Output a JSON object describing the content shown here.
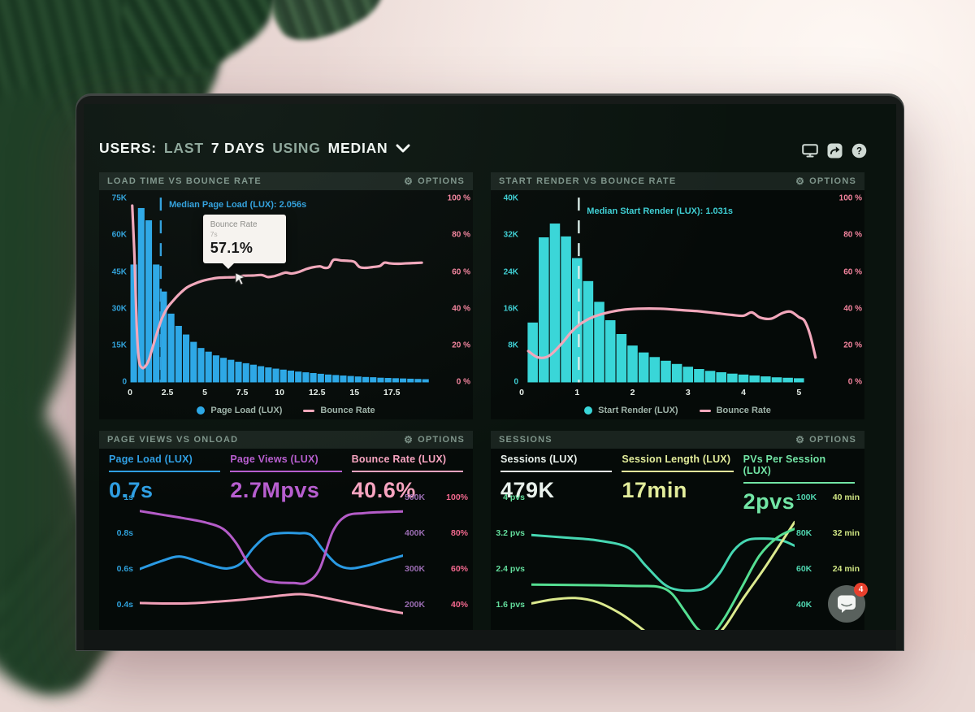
{
  "header": {
    "seg1": "USERS:",
    "seg2": "LAST",
    "seg3": "7 DAYS",
    "seg4": "USING",
    "seg5": "MEDIAN"
  },
  "options_label": "OPTIONS",
  "top_icons": [
    "display-icon",
    "share-icon",
    "help-icon"
  ],
  "panels": {
    "p1": {
      "title": "LOAD TIME VS BOUNCE RATE"
    },
    "p2": {
      "title": "START RENDER VS BOUNCE RATE"
    },
    "p3": {
      "title": "PAGE VIEWS VS ONLOAD",
      "metrics": [
        {
          "label": "Page Load (LUX)",
          "value": "0.7s",
          "color": "#2f9fe3"
        },
        {
          "label": "Page Views (LUX)",
          "value": "2.7Mpvs",
          "color": "#b75ecf"
        },
        {
          "label": "Bounce Rate (LUX)",
          "value": "40.6%",
          "color": "#f7a4c0"
        }
      ]
    },
    "p4": {
      "title": "SESSIONS",
      "metrics": [
        {
          "label": "Sessions (LUX)",
          "value": "479K",
          "color": "#e9f1ec"
        },
        {
          "label": "Session Length (LUX)",
          "value": "17min",
          "color": "#e3ed9b"
        },
        {
          "label": "PVs Per Session (LUX)",
          "value": "2pvs",
          "color": "#72e5a5"
        }
      ]
    }
  },
  "chat": {
    "badge": "4"
  },
  "chart_data": [
    {
      "type": "bar+line",
      "title": "LOAD TIME VS BOUNCE RATE",
      "x_max": 20.2,
      "bar_start": 0,
      "bar_bin": 0.5,
      "bar_color": "#2ba7e6",
      "y_left_max": 75,
      "y_right_max": 100,
      "y_left_ticks": [
        [
          "75K",
          75
        ],
        [
          "60K",
          60
        ],
        [
          "45K",
          45
        ],
        [
          "30K",
          30
        ],
        [
          "15K",
          15
        ],
        [
          "0",
          0
        ]
      ],
      "y_right_ticks": [
        [
          "100 %",
          100
        ],
        [
          "80 %",
          80
        ],
        [
          "60 %",
          60
        ],
        [
          "40 %",
          40
        ],
        [
          "20 %",
          20
        ],
        [
          "0 %",
          0
        ]
      ],
      "y_left_color": "#2e9fd8",
      "y_right_color": "#f4849e",
      "x_ticks": [
        [
          "0",
          0
        ],
        [
          "2.5",
          2.5
        ],
        [
          "5",
          5
        ],
        [
          "7.5",
          7.5
        ],
        [
          "10",
          10
        ],
        [
          "12.5",
          12.5
        ],
        [
          "15",
          15
        ],
        [
          "17.5",
          17.5
        ]
      ],
      "bars": [
        48,
        71,
        66,
        48,
        37,
        28,
        23,
        19.5,
        16.5,
        14,
        12.5,
        11,
        10,
        9.2,
        8.4,
        7.8,
        7.2,
        6.6,
        6.1,
        5.6,
        5.2,
        4.8,
        4.4,
        4.1,
        3.8,
        3.5,
        3.2,
        3.0,
        2.8,
        2.6,
        2.4,
        2.2,
        2.1,
        1.9,
        1.8,
        1.7,
        1.6,
        1.5,
        1.4,
        1.3
      ],
      "line_color": "#f2a7bb",
      "line": [
        [
          0.15,
          96
        ],
        [
          0.3,
          68
        ],
        [
          0.45,
          30
        ],
        [
          0.6,
          12
        ],
        [
          0.8,
          8
        ],
        [
          1.0,
          8.5
        ],
        [
          1.25,
          12
        ],
        [
          1.55,
          20
        ],
        [
          1.85,
          28
        ],
        [
          2.15,
          35
        ],
        [
          2.5,
          40.5
        ],
        [
          2.9,
          44.5
        ],
        [
          3.3,
          48
        ],
        [
          3.8,
          51.5
        ],
        [
          4.3,
          53.5
        ],
        [
          4.8,
          55
        ],
        [
          5.3,
          56
        ],
        [
          5.9,
          56.8
        ],
        [
          6.5,
          57
        ],
        [
          7.0,
          57.1
        ],
        [
          7.6,
          57.9
        ],
        [
          8.2,
          58
        ],
        [
          8.8,
          58.3
        ],
        [
          9.2,
          57.2
        ],
        [
          9.6,
          57.6
        ],
        [
          10.0,
          58.6
        ],
        [
          10.4,
          59.6
        ],
        [
          10.8,
          59.1
        ],
        [
          11.3,
          60
        ],
        [
          11.8,
          61.6
        ],
        [
          12.3,
          62.6
        ],
        [
          12.7,
          63
        ],
        [
          13.0,
          62.2
        ],
        [
          13.3,
          62.6
        ],
        [
          13.6,
          66.5
        ],
        [
          14.1,
          66.2
        ],
        [
          14.6,
          66
        ],
        [
          15.0,
          65.4
        ],
        [
          15.35,
          62.6
        ],
        [
          15.8,
          62.2
        ],
        [
          16.2,
          62.6
        ],
        [
          16.7,
          63.2
        ],
        [
          17.0,
          65
        ],
        [
          17.4,
          64.6
        ],
        [
          17.9,
          64.4
        ],
        [
          18.4,
          64.6
        ],
        [
          19.0,
          64.8
        ],
        [
          19.5,
          65
        ]
      ],
      "median_x": 2.056,
      "median_color": "#2f9fdd",
      "median_label": "Median Page Load (LUX): 2.056s",
      "median_label_color": "#2f9fdd",
      "tooltip": {
        "title": "Bounce Rate",
        "sub": "7s",
        "value": "57.1%"
      },
      "legend": [
        {
          "marker": "dot",
          "color": "#2ba7e6",
          "label": "Page Load (LUX)"
        },
        {
          "marker": "dash",
          "color": "#f2a7bb",
          "label": "Bounce Rate"
        }
      ]
    },
    {
      "type": "bar+line",
      "title": "START RENDER VS BOUNCE RATE",
      "x_max": 5.45,
      "bar_start": 0.1,
      "bar_bin": 0.2,
      "bar_color": "#39d6d8",
      "y_left_max": 40,
      "y_right_max": 100,
      "y_left_ticks": [
        [
          "40K",
          40
        ],
        [
          "32K",
          32
        ],
        [
          "24K",
          24
        ],
        [
          "16K",
          16
        ],
        [
          "8K",
          8
        ],
        [
          "0",
          0
        ]
      ],
      "y_right_ticks": [
        [
          "100 %",
          100
        ],
        [
          "80 %",
          80
        ],
        [
          "60 %",
          60
        ],
        [
          "40 %",
          40
        ],
        [
          "20 %",
          20
        ],
        [
          "0 %",
          0
        ]
      ],
      "y_left_color": "#3ecfd4",
      "y_right_color": "#f4849e",
      "x_ticks": [
        [
          "0",
          0
        ],
        [
          "1",
          1
        ],
        [
          "2",
          2
        ],
        [
          "3",
          3
        ],
        [
          "4",
          4
        ],
        [
          "5",
          5
        ]
      ],
      "bars": [
        13,
        31.5,
        34.5,
        31.7,
        27,
        22,
        17.5,
        13.5,
        10.5,
        8,
        6.5,
        5.5,
        4.7,
        4,
        3.4,
        2.9,
        2.5,
        2.2,
        1.9,
        1.7,
        1.5,
        1.3,
        1.1,
        1.0,
        0.9
      ],
      "line_color": "#f2a7bb",
      "line": [
        [
          0.12,
          17
        ],
        [
          0.3,
          13.5
        ],
        [
          0.5,
          14.5
        ],
        [
          0.72,
          21
        ],
        [
          0.9,
          27.5
        ],
        [
          1.05,
          31.5
        ],
        [
          1.25,
          35
        ],
        [
          1.5,
          37.5
        ],
        [
          1.8,
          39.3
        ],
        [
          2.1,
          40
        ],
        [
          2.5,
          40
        ],
        [
          2.9,
          39.2
        ],
        [
          3.2,
          38.6
        ],
        [
          3.5,
          37.6
        ],
        [
          3.8,
          36.6
        ],
        [
          4.0,
          36.2
        ],
        [
          4.15,
          38
        ],
        [
          4.3,
          35.2
        ],
        [
          4.5,
          34.6
        ],
        [
          4.7,
          37.6
        ],
        [
          4.85,
          38.4
        ],
        [
          5.0,
          35.4
        ],
        [
          5.1,
          33.5
        ],
        [
          5.2,
          26
        ],
        [
          5.3,
          13.5
        ]
      ],
      "median_x": 1.031,
      "median_color": "#d9ece8",
      "median_label": "Median Start Render (LUX): 1.031s",
      "median_label_color": "#3ecfd4",
      "legend": [
        {
          "marker": "dot",
          "color": "#39d6d8",
          "label": "Start Render (LUX)"
        },
        {
          "marker": "dash",
          "color": "#f2a7bb",
          "label": "Bounce Rate"
        }
      ]
    },
    {
      "type": "line",
      "title": "PAGE VIEWS VS ONLOAD",
      "x_max": 6,
      "y_left_ticks": [
        [
          "1s",
          0
        ],
        [
          "0.8s",
          1
        ],
        [
          "0.6s",
          2
        ],
        [
          "0.4s",
          3
        ]
      ],
      "y_left_color": "#2e9fd8",
      "y_right_rows": [
        [
          "500K",
          "100%"
        ],
        [
          "400K",
          "80%"
        ],
        [
          "300K",
          "60%"
        ],
        [
          "200K",
          "40%"
        ]
      ],
      "y_right_color1": "#9a6cb2",
      "y_right_color2": "#f2688e",
      "series": [
        {
          "name": "Page Load (LUX)",
          "color": "#2a9ae3",
          "axis_top": 1,
          "axis_step": 0.2,
          "points": [
            [
              0,
              0.6
            ],
            [
              0.5,
              0.645
            ],
            [
              0.9,
              0.67
            ],
            [
              1.3,
              0.645
            ],
            [
              1.7,
              0.615
            ],
            [
              2.0,
              0.603
            ],
            [
              2.3,
              0.63
            ],
            [
              2.6,
              0.72
            ],
            [
              2.9,
              0.785
            ],
            [
              3.2,
              0.8
            ],
            [
              3.6,
              0.8
            ],
            [
              3.9,
              0.79
            ],
            [
              4.2,
              0.7
            ],
            [
              4.5,
              0.625
            ],
            [
              4.8,
              0.603
            ],
            [
              5.2,
              0.62
            ],
            [
              5.6,
              0.648
            ],
            [
              6,
              0.675
            ]
          ]
        },
        {
          "name": "Page Views (LUX)",
          "color": "#b45cc8",
          "axis_top": 500,
          "axis_step": 100,
          "points": [
            [
              0,
              462
            ],
            [
              0.5,
              452
            ],
            [
              1.0,
              442
            ],
            [
              1.5,
              430
            ],
            [
              1.9,
              412
            ],
            [
              2.2,
              372
            ],
            [
              2.5,
              310
            ],
            [
              2.8,
              272
            ],
            [
              3.1,
              263
            ],
            [
              3.5,
              261
            ],
            [
              3.8,
              262
            ],
            [
              4.1,
              300
            ],
            [
              4.4,
              405
            ],
            [
              4.7,
              448
            ],
            [
              5.1,
              456
            ],
            [
              5.5,
              459
            ],
            [
              6,
              461
            ]
          ]
        },
        {
          "name": "Bounce Rate (LUX)",
          "color": "#f2a0b8",
          "axis_top": 100,
          "axis_step": 20,
          "points": [
            [
              0,
              41
            ],
            [
              0.6,
              40.7
            ],
            [
              1.2,
              40.9
            ],
            [
              1.8,
              41.8
            ],
            [
              2.4,
              43
            ],
            [
              2.9,
              44.3
            ],
            [
              3.4,
              45.6
            ],
            [
              3.7,
              45.9
            ],
            [
              4.0,
              45
            ],
            [
              4.4,
              43
            ],
            [
              4.8,
              41
            ],
            [
              5.2,
              39
            ],
            [
              5.6,
              37
            ],
            [
              6,
              35.3
            ]
          ]
        }
      ]
    },
    {
      "type": "line",
      "title": "SESSIONS",
      "x_max": 6,
      "y_left_ticks": [
        [
          "4 pvs",
          0
        ],
        [
          "3.2 pvs",
          1
        ],
        [
          "2.4 pvs",
          2
        ],
        [
          "1.6 pvs",
          3
        ]
      ],
      "y_left_color": "#63dd9c",
      "y_right_rows": [
        [
          "100K",
          "40 min"
        ],
        [
          "80K",
          "32 min"
        ],
        [
          "60K",
          "24 min"
        ],
        [
          "40K",
          ""
        ]
      ],
      "y_right_color1": "#4fd4ae",
      "y_right_color2": "#cfe583",
      "series": [
        {
          "name": "Sessions (LUX)",
          "color": "#46d7b2",
          "axis_top": 100,
          "axis_step": 20,
          "points": [
            [
              0,
              79
            ],
            [
              0.8,
              77.5
            ],
            [
              1.5,
              76
            ],
            [
              2.2,
              72
            ],
            [
              2.6,
              62
            ],
            [
              3.0,
              52
            ],
            [
              3.3,
              48.5
            ],
            [
              3.7,
              48
            ],
            [
              4.0,
              50
            ],
            [
              4.3,
              58
            ],
            [
              4.6,
              70
            ],
            [
              4.9,
              76
            ],
            [
              5.3,
              77
            ],
            [
              5.7,
              76
            ],
            [
              6,
              73
            ]
          ]
        },
        {
          "name": "Session Length (LUX)",
          "color": "#dcea8e",
          "axis_top": 40,
          "axis_step": 8,
          "points": [
            [
              0,
              16.3
            ],
            [
              0.5,
              17.2
            ],
            [
              1.0,
              17.5
            ],
            [
              1.5,
              16.6
            ],
            [
              2.0,
              14.2
            ],
            [
              2.4,
              11.5
            ],
            [
              2.8,
              8.5
            ],
            [
              3.2,
              6.5
            ],
            [
              3.6,
              5.8
            ],
            [
              4.0,
              7
            ],
            [
              4.4,
              11
            ],
            [
              4.8,
              17
            ],
            [
              5.3,
              24
            ],
            [
              5.7,
              30
            ],
            [
              6,
              34.5
            ]
          ]
        },
        {
          "name": "PVs Per Session (LUX)",
          "color": "#55df92",
          "axis_top": 4,
          "axis_step": 0.8,
          "points": [
            [
              0,
              2.05
            ],
            [
              1.2,
              2.04
            ],
            [
              2.4,
              2.02
            ],
            [
              2.9,
              2.0
            ],
            [
              3.2,
              1.85
            ],
            [
              3.5,
              1.45
            ],
            [
              3.8,
              1.05
            ],
            [
              4.1,
              0.95
            ],
            [
              4.4,
              1.3
            ],
            [
              4.8,
              2.0
            ],
            [
              5.2,
              2.7
            ],
            [
              5.6,
              3.1
            ],
            [
              6,
              3.3
            ]
          ]
        }
      ]
    }
  ]
}
